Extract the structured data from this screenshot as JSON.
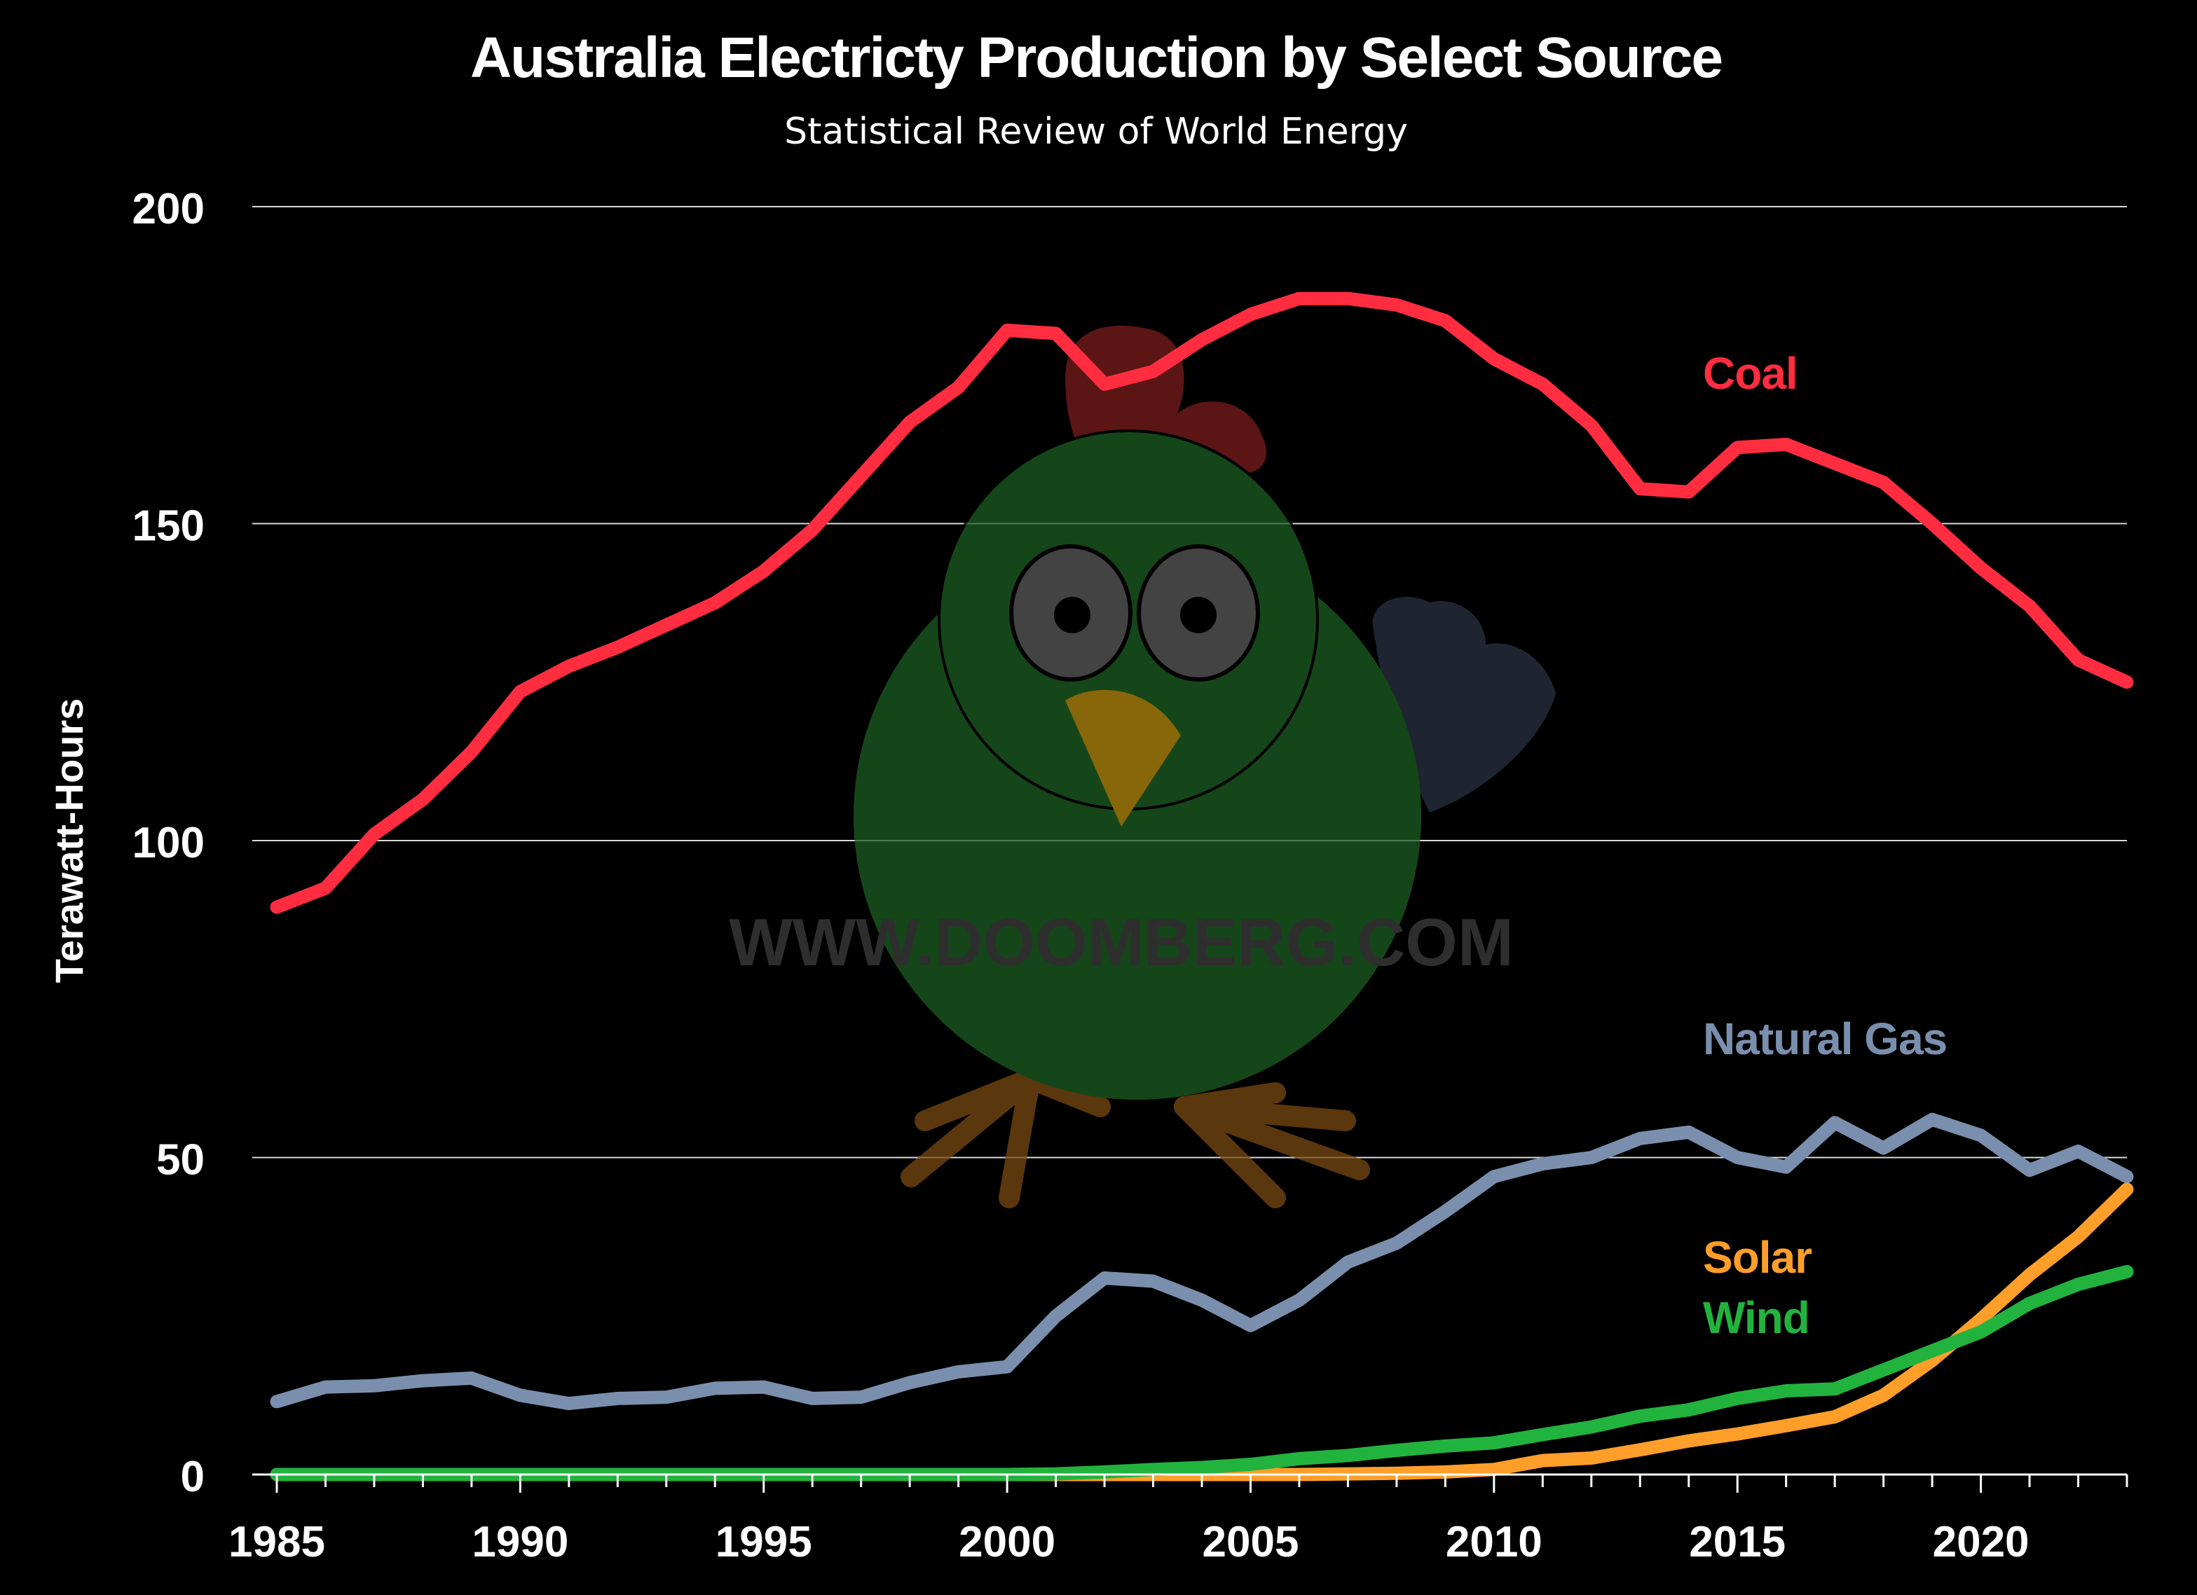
{
  "chart_data": {
    "type": "line",
    "title": "Australia Electricty Production by Select Source",
    "subtitle": "Statistical Review of World Energy",
    "xlabel": "",
    "ylabel": "Terawatt-Hours",
    "xlim": [
      1985,
      2023
    ],
    "ylim": [
      0,
      200
    ],
    "x_ticks": [
      1985,
      1990,
      1995,
      2000,
      2005,
      2010,
      2015,
      2020
    ],
    "y_ticks": [
      0,
      50,
      100,
      150,
      200
    ],
    "grid": "horizontal",
    "legend": "inline labels at right",
    "x": [
      1985,
      1986,
      1987,
      1988,
      1989,
      1990,
      1991,
      1992,
      1993,
      1994,
      1995,
      1996,
      1997,
      1998,
      1999,
      2000,
      2001,
      2002,
      2003,
      2004,
      2005,
      2006,
      2007,
      2008,
      2009,
      2010,
      2011,
      2012,
      2013,
      2014,
      2015,
      2016,
      2017,
      2018,
      2019,
      2020,
      2021,
      2022,
      2023
    ],
    "series": [
      {
        "name": "Coal",
        "color": "#ff2d3f",
        "values": [
          89.5,
          92.5,
          101,
          106.5,
          114,
          123.5,
          127.5,
          130.5,
          134,
          137.5,
          142.5,
          149,
          157.5,
          166,
          171.5,
          180.5,
          180,
          172,
          174,
          179,
          183,
          185.5,
          185.5,
          184.5,
          182,
          176,
          172,
          165.5,
          155.5,
          155,
          162,
          162.5,
          159.5,
          156.5,
          150,
          143,
          137,
          128.5,
          125
        ]
      },
      {
        "name": "Natural Gas",
        "color": "#7a8fad",
        "values": [
          11.5,
          13.8,
          14,
          14.8,
          15.2,
          12.5,
          11.2,
          12,
          12.2,
          13.6,
          13.8,
          12,
          12.2,
          14.5,
          16.2,
          17,
          25,
          31,
          30.5,
          27.5,
          23.5,
          27.5,
          33.5,
          36.5,
          41.5,
          47,
          49,
          50,
          53,
          54,
          50,
          48.5,
          55.5,
          51.5,
          56,
          53.5,
          48,
          51,
          47
        ]
      },
      {
        "name": "Solar",
        "color": "#ff9f2a",
        "values": [
          0,
          0,
          0,
          0,
          0,
          0,
          0,
          0,
          0,
          0,
          0,
          0,
          0,
          0,
          0,
          0,
          0,
          0,
          0,
          0,
          0,
          0,
          0.1,
          0.2,
          0.4,
          0.8,
          2.2,
          2.6,
          3.9,
          5.3,
          6.4,
          7.7,
          9.1,
          12.5,
          18,
          24.5,
          31.5,
          37.5,
          45
        ]
      },
      {
        "name": "Wind",
        "color": "#22b33e",
        "values": [
          0,
          0,
          0,
          0,
          0,
          0,
          0,
          0,
          0,
          0,
          0,
          0,
          0,
          0,
          0,
          0,
          0.1,
          0.4,
          0.8,
          1.1,
          1.6,
          2.5,
          3,
          3.8,
          4.5,
          5,
          6.3,
          7.5,
          9.2,
          10.2,
          12,
          13.2,
          13.5,
          16.5,
          19.5,
          22.5,
          27,
          30,
          32
        ]
      }
    ]
  },
  "watermark": {
    "text": "WWW.DOOMBERG.COM",
    "description": "chicken mascot",
    "colors": {
      "body": "#1c5e22",
      "comb": "#7a1c1c",
      "beak": "#b58a0e",
      "legs": "#7a4a12",
      "wing": "#2a3240",
      "eyes": "#5a5a5a",
      "text": "#2e2e2e"
    }
  }
}
